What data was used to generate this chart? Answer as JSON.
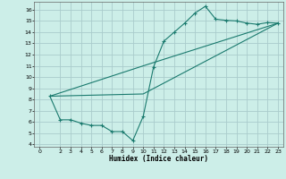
{
  "title": "",
  "xlabel": "Humidex (Indice chaleur)",
  "bg_color": "#cceee8",
  "grid_color": "#aacccc",
  "line_color": "#1a7a6e",
  "xlim": [
    -0.5,
    23.5
  ],
  "ylim": [
    3.8,
    16.7
  ],
  "xticks": [
    0,
    2,
    3,
    4,
    5,
    6,
    7,
    8,
    9,
    10,
    11,
    12,
    13,
    14,
    15,
    16,
    17,
    18,
    19,
    20,
    21,
    22,
    23
  ],
  "yticks": [
    4,
    5,
    6,
    7,
    8,
    9,
    10,
    11,
    12,
    13,
    14,
    15,
    16
  ],
  "line1_x": [
    1,
    2,
    3,
    4,
    5,
    6,
    7,
    8,
    9,
    10,
    11,
    12,
    13,
    14,
    15,
    16,
    17,
    18,
    19,
    20,
    21,
    22,
    23
  ],
  "line1_y": [
    8.3,
    6.2,
    6.2,
    5.9,
    5.7,
    5.7,
    5.15,
    5.15,
    4.35,
    6.5,
    10.9,
    13.2,
    14.0,
    14.8,
    15.7,
    16.3,
    15.15,
    15.05,
    15.0,
    14.8,
    14.7,
    14.85,
    14.8
  ],
  "line2_x": [
    1,
    10,
    23
  ],
  "line2_y": [
    8.3,
    11.0,
    14.8
  ],
  "line3_x": [
    1,
    10,
    23
  ],
  "line3_y": [
    8.3,
    8.5,
    14.8
  ]
}
